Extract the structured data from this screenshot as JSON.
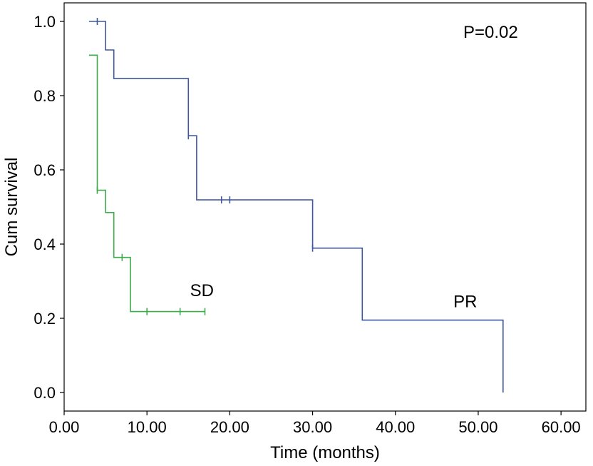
{
  "chart_data": {
    "type": "line",
    "xlabel": "Time (months)",
    "ylabel": "Cum survival",
    "xlim": [
      0,
      63
    ],
    "ylim": [
      -0.05,
      1.05
    ],
    "xticks": [
      {
        "value": 0,
        "label": "0.00"
      },
      {
        "value": 10,
        "label": "10.00"
      },
      {
        "value": 20,
        "label": "20.00"
      },
      {
        "value": 30,
        "label": "30.00"
      },
      {
        "value": 40,
        "label": "40.00"
      },
      {
        "value": 50,
        "label": "50.00"
      },
      {
        "value": 60,
        "label": "60.00"
      }
    ],
    "yticks": [
      {
        "value": 0.0,
        "label": "0.0"
      },
      {
        "value": 0.2,
        "label": "0.2"
      },
      {
        "value": 0.4,
        "label": "0.4"
      },
      {
        "value": 0.6,
        "label": "0.6"
      },
      {
        "value": 0.8,
        "label": "0.8"
      },
      {
        "value": 1.0,
        "label": "1.0"
      }
    ],
    "grid": false,
    "annotation": "P=0.02",
    "series": [
      {
        "name": "PR",
        "color": "#3f56a0",
        "steps": [
          [
            3,
            1.0
          ],
          [
            5,
            1.0
          ],
          [
            5,
            0.923
          ],
          [
            6,
            0.923
          ],
          [
            6,
            0.846
          ],
          [
            15,
            0.846
          ],
          [
            15,
            0.692
          ],
          [
            16,
            0.692
          ],
          [
            16,
            0.519
          ],
          [
            30,
            0.519
          ],
          [
            30,
            0.389
          ],
          [
            36,
            0.389
          ],
          [
            36,
            0.195
          ],
          [
            53,
            0.195
          ],
          [
            53,
            0.0
          ]
        ],
        "censored": [
          [
            4,
            1.0
          ],
          [
            15,
            0.692
          ],
          [
            19,
            0.519
          ],
          [
            20,
            0.519
          ],
          [
            30,
            0.389
          ]
        ],
        "label_position": [
          47,
          0.23
        ]
      },
      {
        "name": "SD",
        "color": "#3cab4a",
        "steps": [
          [
            3,
            0.909
          ],
          [
            4,
            0.909
          ],
          [
            4,
            0.545
          ],
          [
            5,
            0.545
          ],
          [
            5,
            0.485
          ],
          [
            6,
            0.485
          ],
          [
            6,
            0.364
          ],
          [
            8,
            0.364
          ],
          [
            8,
            0.218
          ],
          [
            17,
            0.218
          ]
        ],
        "censored": [
          [
            4,
            0.545
          ],
          [
            7,
            0.364
          ],
          [
            10,
            0.218
          ],
          [
            14,
            0.218
          ],
          [
            17,
            0.218
          ]
        ],
        "label_position": [
          15.2,
          0.26
        ]
      }
    ]
  }
}
